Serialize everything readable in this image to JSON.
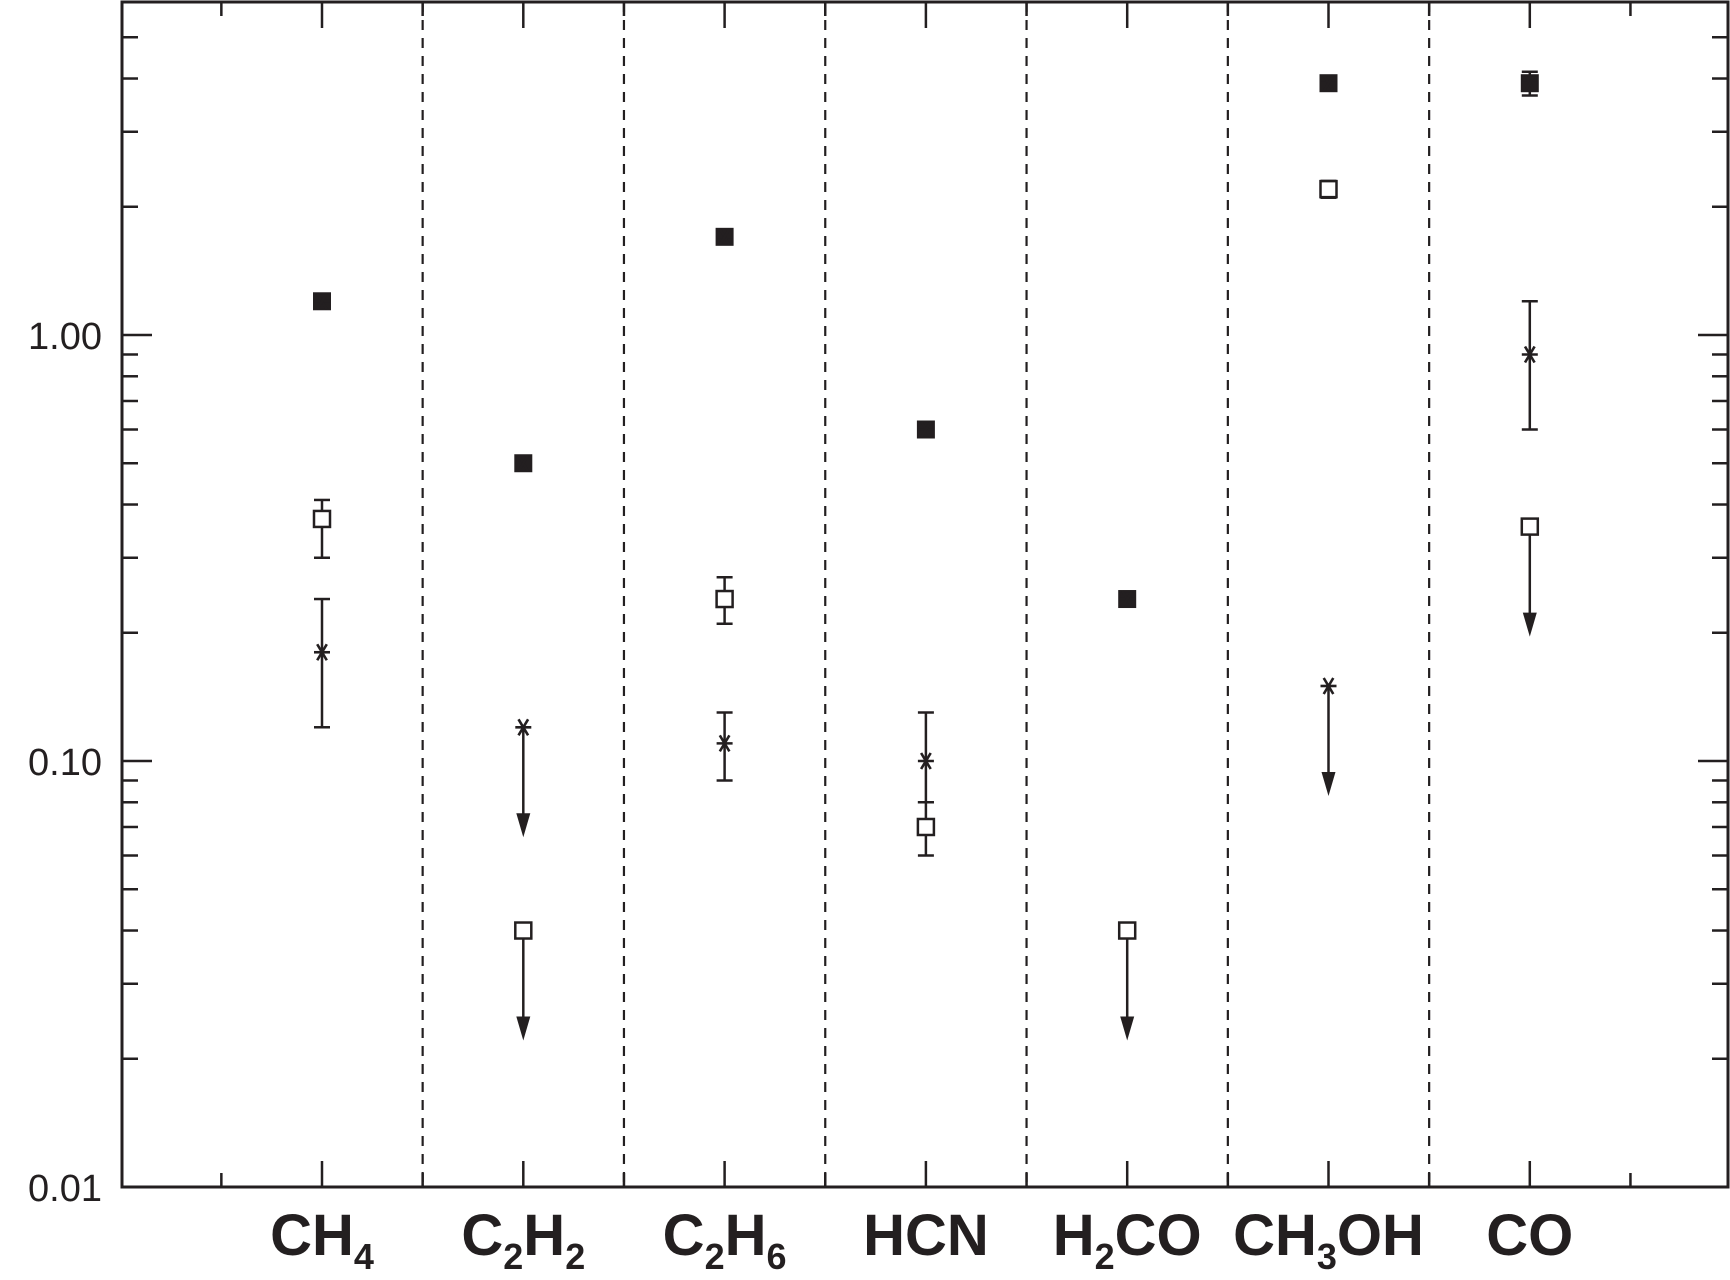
{
  "chart_data": {
    "type": "scatter",
    "title": "",
    "xlabel": "",
    "ylabel": "",
    "yscale": "log",
    "ylim": [
      0.01,
      5.6
    ],
    "y_tick_labels": [
      "0.01",
      "0.10",
      "1.00"
    ],
    "y_tick_values": [
      0.01,
      0.1,
      1.0
    ],
    "grid": false,
    "category_separators": "dashed",
    "categories": [
      {
        "parts": [
          {
            "t": "CH"
          },
          {
            "t": "4",
            "sub": true
          }
        ]
      },
      {
        "parts": [
          {
            "t": "C"
          },
          {
            "t": "2",
            "sub": true
          },
          {
            "t": "H"
          },
          {
            "t": "2",
            "sub": true
          }
        ]
      },
      {
        "parts": [
          {
            "t": "C"
          },
          {
            "t": "2",
            "sub": true
          },
          {
            "t": "H"
          },
          {
            "t": "6",
            "sub": true
          }
        ]
      },
      {
        "parts": [
          {
            "t": "HCN"
          }
        ]
      },
      {
        "parts": [
          {
            "t": "H"
          },
          {
            "t": "2",
            "sub": true
          },
          {
            "t": "CO"
          }
        ]
      },
      {
        "parts": [
          {
            "t": "CH"
          },
          {
            "t": "3",
            "sub": true
          },
          {
            "t": "OH"
          }
        ]
      },
      {
        "parts": [
          {
            "t": "CO"
          }
        ]
      }
    ],
    "series": [
      {
        "marker": "filled-square",
        "points": [
          {
            "y": 1.2,
            "err": [
              1.17,
              1.23
            ]
          },
          {
            "y": 0.5,
            "err": [
              0.49,
              0.51
            ]
          },
          {
            "y": 1.7,
            "err": [
              1.66,
              1.74
            ]
          },
          {
            "y": 0.6,
            "err": [
              0.58,
              0.62
            ]
          },
          {
            "y": 0.24,
            "err": [
              0.235,
              0.245
            ]
          },
          {
            "y": 3.9,
            "err": [
              3.82,
              3.98
            ]
          },
          {
            "y": 3.9,
            "err": [
              3.65,
              4.15
            ]
          }
        ]
      },
      {
        "marker": "open-square",
        "points": [
          {
            "y": 0.37,
            "err": [
              0.3,
              0.41
            ]
          },
          {
            "y": 0.04,
            "upper_limit": true
          },
          {
            "y": 0.24,
            "err": [
              0.21,
              0.27
            ]
          },
          {
            "y": 0.07,
            "err": [
              0.06,
              0.08
            ]
          },
          {
            "y": 0.04,
            "upper_limit": true
          },
          {
            "y": 2.2,
            "err": [
              2.1,
              2.3
            ]
          },
          {
            "y": 0.355,
            "upper_limit": true
          }
        ]
      },
      {
        "marker": "asterisk",
        "points": [
          {
            "y": 0.18,
            "err": [
              0.12,
              0.24
            ]
          },
          {
            "y": 0.12,
            "upper_limit": true
          },
          {
            "y": 0.11,
            "err": [
              0.09,
              0.13
            ]
          },
          {
            "y": 0.1,
            "err": [
              0.08,
              0.13
            ]
          },
          null,
          {
            "y": 0.15,
            "upper_limit": true
          },
          {
            "y": 0.9,
            "err": [
              0.6,
              1.2
            ]
          }
        ]
      }
    ]
  }
}
